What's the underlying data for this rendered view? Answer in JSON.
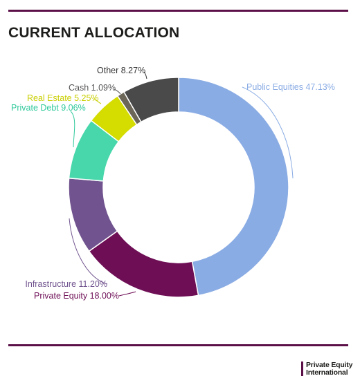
{
  "title": "CURRENT ALLOCATION",
  "brand": {
    "line1": "Private Equity",
    "line2": "International",
    "color": "#5b1048"
  },
  "chart_data": {
    "type": "pie",
    "style": "donut",
    "title": "CURRENT ALLOCATION",
    "slices": [
      {
        "label": "Public Equities",
        "value": 47.13,
        "display": "Public Equities 47.13%",
        "color": "#8aace4",
        "text_color": "#8aace4"
      },
      {
        "label": "Private Equity",
        "value": 18.0,
        "display": "Private Equity 18.00%",
        "color": "#6e0f56",
        "text_color": "#6e0f56"
      },
      {
        "label": "Infrastructure",
        "value": 11.2,
        "display": "Infrastructure 11.20%",
        "color": "#71548f",
        "text_color": "#71548f"
      },
      {
        "label": "Private Debt",
        "value": 9.06,
        "display": "Private Debt 9.06%",
        "color": "#47d7aa",
        "text_color": "#2fc99b"
      },
      {
        "label": "Real Estate",
        "value": 5.25,
        "display": "Real Estate 5.25%",
        "color": "#d4dc00",
        "text_color": "#c9cf00"
      },
      {
        "label": "Cash",
        "value": 1.09,
        "display": "Cash 1.09%",
        "color": "#6b6658",
        "text_color": "#555555"
      },
      {
        "label": "Other",
        "value": 8.27,
        "display": "Other 8.27%",
        "color": "#4a4a4a",
        "text_color": "#333333"
      }
    ]
  }
}
